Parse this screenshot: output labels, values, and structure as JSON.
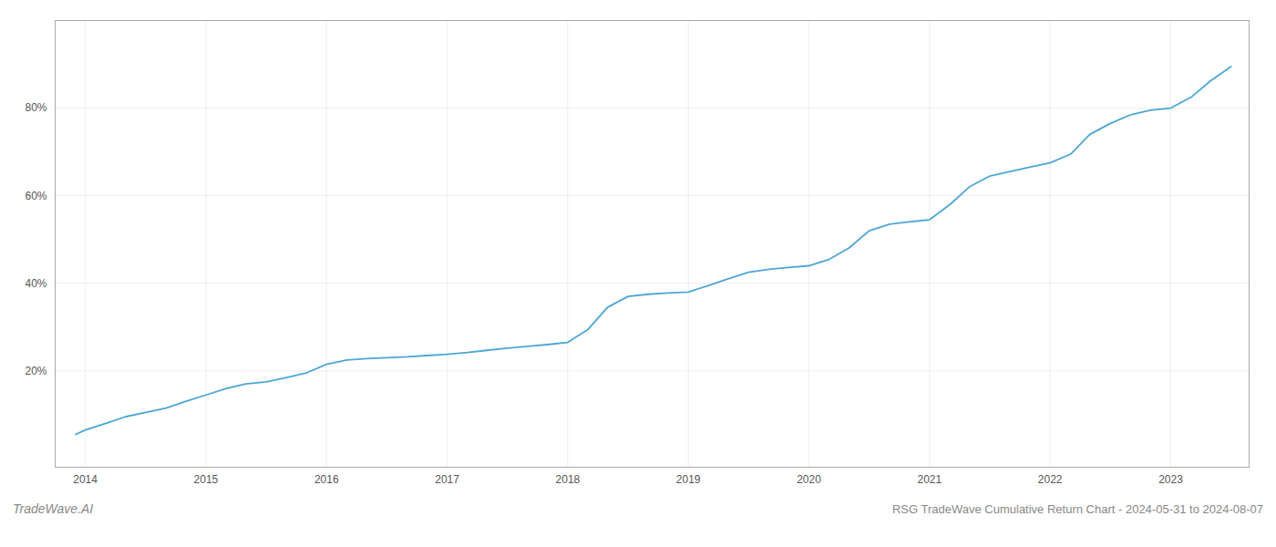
{
  "chart_data": {
    "type": "line",
    "title": "RSG TradeWave Cumulative Return Chart - 2024-05-31 to 2024-08-07",
    "annotations": [
      "TradeWave.AI"
    ],
    "color": "#4da6d4",
    "x": [
      2013.92,
      2014.0,
      2014.17,
      2014.33,
      2014.5,
      2014.67,
      2014.83,
      2015.0,
      2015.17,
      2015.33,
      2015.5,
      2015.67,
      2015.83,
      2016.0,
      2016.17,
      2016.33,
      2016.5,
      2016.67,
      2016.83,
      2017.0,
      2017.17,
      2017.33,
      2017.5,
      2017.67,
      2017.83,
      2018.0,
      2018.17,
      2018.33,
      2018.5,
      2018.67,
      2018.83,
      2019.0,
      2019.17,
      2019.33,
      2019.5,
      2019.67,
      2019.83,
      2020.0,
      2020.17,
      2020.33,
      2020.5,
      2020.67,
      2020.83,
      2021.0,
      2021.17,
      2021.33,
      2021.5,
      2021.67,
      2021.83,
      2022.0,
      2022.17,
      2022.33,
      2022.5,
      2022.67,
      2022.83,
      2023.0,
      2023.17,
      2023.33,
      2023.5
    ],
    "values": [
      0.055,
      0.065,
      0.08,
      0.095,
      0.105,
      0.115,
      0.13,
      0.145,
      0.16,
      0.17,
      0.175,
      0.185,
      0.195,
      0.215,
      0.225,
      0.228,
      0.23,
      0.232,
      0.235,
      0.238,
      0.242,
      0.247,
      0.252,
      0.256,
      0.26,
      0.265,
      0.295,
      0.345,
      0.37,
      0.375,
      0.378,
      0.38,
      0.395,
      0.41,
      0.425,
      0.432,
      0.436,
      0.44,
      0.455,
      0.48,
      0.52,
      0.535,
      0.54,
      0.545,
      0.58,
      0.62,
      0.645,
      0.655,
      0.665,
      0.675,
      0.695,
      0.74,
      0.765,
      0.785,
      0.795,
      0.8,
      0.825,
      0.862,
      0.895
    ],
    "xlim": [
      2013.75,
      2023.65
    ],
    "xticks": [
      2014,
      2015,
      2016,
      2017,
      2018,
      2019,
      2020,
      2021,
      2022,
      2023
    ],
    "ylim": [
      -0.02,
      1.0
    ],
    "yticks": [
      {
        "value": 0.2,
        "label": "20%"
      },
      {
        "value": 0.4,
        "label": "40%"
      },
      {
        "value": 0.6,
        "label": "60%"
      },
      {
        "value": 0.8,
        "label": "80%"
      }
    ],
    "grid": true
  }
}
